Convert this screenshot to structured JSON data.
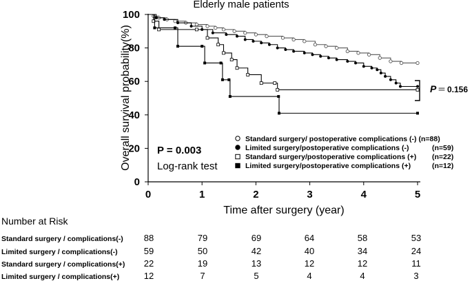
{
  "chart_data": {
    "type": "line",
    "title": "Elderly male patients",
    "xlabel": "Time after surgery (year)",
    "ylabel": "Overall survival probability(%)",
    "xlim": [
      0,
      5
    ],
    "ylim": [
      0,
      100
    ],
    "xticks": [
      0,
      1,
      2,
      3,
      4,
      5
    ],
    "yticks": [
      0,
      20,
      40,
      60,
      80,
      100
    ],
    "xtick_labels": [
      "0",
      "1",
      "2",
      "3",
      "4",
      "5"
    ],
    "ytick_labels": [
      "0",
      "20",
      "40",
      "60",
      "80",
      "100"
    ],
    "series": [
      {
        "name": "Standard surgery/ postoperative complications (-) (n=88)",
        "marker": "open-circle",
        "color": "#555555",
        "steps": [
          [
            0,
            100
          ],
          [
            0.1,
            99
          ],
          [
            0.2,
            98
          ],
          [
            0.35,
            97
          ],
          [
            0.5,
            96
          ],
          [
            0.7,
            95
          ],
          [
            0.9,
            94
          ],
          [
            1.1,
            93
          ],
          [
            1.25,
            92
          ],
          [
            1.4,
            91
          ],
          [
            1.6,
            90
          ],
          [
            1.8,
            89
          ],
          [
            2.0,
            88
          ],
          [
            2.2,
            87
          ],
          [
            2.5,
            86
          ],
          [
            2.7,
            85
          ],
          [
            2.9,
            84
          ],
          [
            3.1,
            82
          ],
          [
            3.3,
            81
          ],
          [
            3.5,
            80
          ],
          [
            3.7,
            78
          ],
          [
            3.9,
            77
          ],
          [
            4.1,
            76
          ],
          [
            4.3,
            74
          ],
          [
            4.5,
            72
          ],
          [
            4.7,
            71
          ],
          [
            5.0,
            71
          ]
        ]
      },
      {
        "name": "Limited surgery/postoperative complications (-)",
        "count": "(n=59)",
        "marker": "filled-circle",
        "color": "#000000",
        "steps": [
          [
            0,
            100
          ],
          [
            0.15,
            98
          ],
          [
            0.3,
            97
          ],
          [
            0.55,
            95
          ],
          [
            0.8,
            93
          ],
          [
            1.0,
            91
          ],
          [
            1.2,
            89
          ],
          [
            1.45,
            88
          ],
          [
            1.65,
            87
          ],
          [
            1.8,
            85
          ],
          [
            1.95,
            84
          ],
          [
            2.1,
            83
          ],
          [
            2.25,
            82
          ],
          [
            2.4,
            80
          ],
          [
            2.55,
            79
          ],
          [
            2.7,
            78
          ],
          [
            2.9,
            77
          ],
          [
            3.05,
            76
          ],
          [
            3.2,
            75
          ],
          [
            3.35,
            74
          ],
          [
            3.5,
            73
          ],
          [
            3.7,
            72
          ],
          [
            3.85,
            71
          ],
          [
            4.0,
            69
          ],
          [
            4.15,
            68
          ],
          [
            4.25,
            67
          ],
          [
            4.32,
            65
          ],
          [
            4.4,
            63
          ],
          [
            4.5,
            61
          ],
          [
            4.6,
            59
          ],
          [
            4.68,
            57
          ],
          [
            5.0,
            57
          ]
        ]
      },
      {
        "name": "Standard surgery/postoperative complications (+)",
        "count": "(n=22)",
        "marker": "open-square",
        "color": "#000000",
        "steps": [
          [
            0,
            100
          ],
          [
            0.1,
            96
          ],
          [
            0.2,
            91
          ],
          [
            0.9,
            91
          ],
          [
            1.1,
            86
          ],
          [
            1.3,
            82
          ],
          [
            1.4,
            77
          ],
          [
            1.55,
            73
          ],
          [
            1.65,
            68
          ],
          [
            1.85,
            64
          ],
          [
            2.1,
            59
          ],
          [
            2.35,
            59
          ],
          [
            2.4,
            55
          ],
          [
            5.0,
            55
          ]
        ]
      },
      {
        "name": "Limited surgery/postoperative complications (+)",
        "count": "(n=12)",
        "marker": "filled-square",
        "color": "#000000",
        "steps": [
          [
            0,
            100
          ],
          [
            0.12,
            92
          ],
          [
            0.5,
            92
          ],
          [
            0.55,
            81
          ],
          [
            1.0,
            81
          ],
          [
            1.05,
            71
          ],
          [
            1.35,
            71
          ],
          [
            1.38,
            61
          ],
          [
            1.5,
            61
          ],
          [
            1.52,
            51
          ],
          [
            2.42,
            51
          ],
          [
            2.43,
            41
          ],
          [
            5.0,
            41
          ]
        ]
      }
    ],
    "legend_position": "lower-right",
    "annotations": {
      "pvalue_bracket": {
        "label": "P",
        "equals": "＝",
        "value": "0.156"
      },
      "pvalue_main": "P = 0.003",
      "test_name": "Log-rank test"
    },
    "risk_table": {
      "heading": "Number at Risk",
      "rows": [
        {
          "label": "Standard surgery / complications(-)",
          "values": [
            "88",
            "79",
            "69",
            "64",
            "58",
            "53"
          ]
        },
        {
          "label": "Limited surgery / complications(-)",
          "values": [
            "59",
            "50",
            "42",
            "40",
            "34",
            "24"
          ]
        },
        {
          "label": "Standard surgery / complications(+)",
          "values": [
            "22",
            "19",
            "13",
            "12",
            "12",
            "11"
          ]
        },
        {
          "label": "Limited surgery / complications(+)",
          "values": [
            "12",
            "7",
            "5",
            "4",
            "4",
            "3"
          ]
        }
      ]
    }
  }
}
